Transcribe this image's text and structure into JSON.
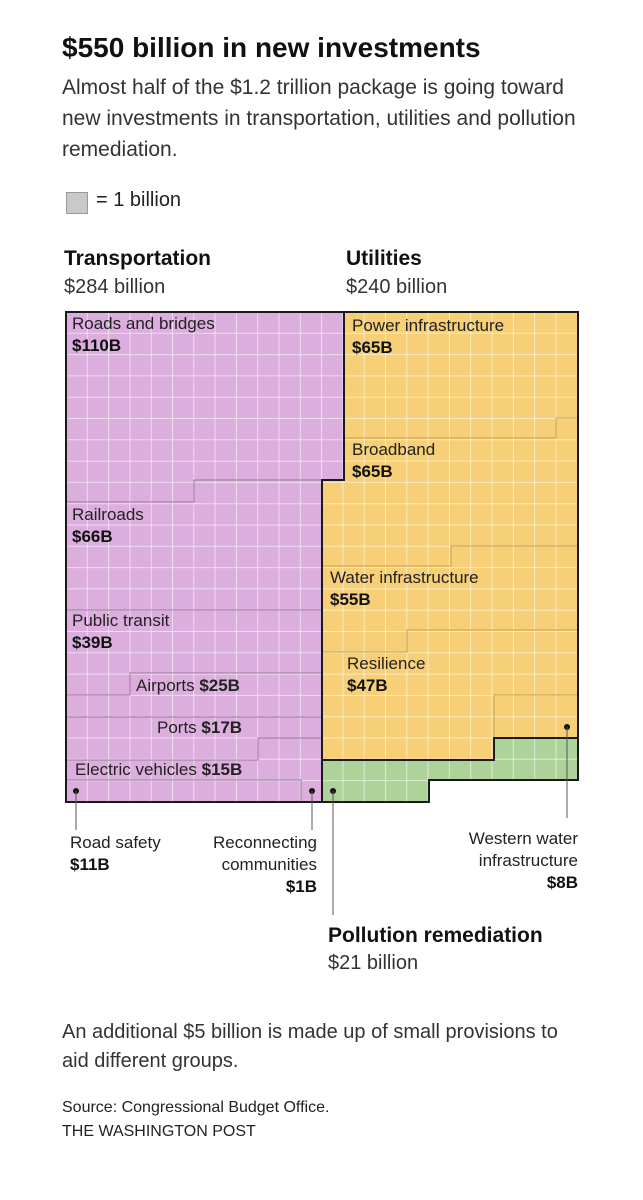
{
  "title": "$550 billion in new investments",
  "subtitle": "Almost half of the $1.2 trillion package is going toward new investments in transportation, utilities and pollution remediation.",
  "legend": {
    "text": "= 1 billion"
  },
  "chart_data": {
    "type": "unit-grid treemap",
    "title": "$550 billion in new investments",
    "unit": "1 billion per square",
    "colors": {
      "transportation": "#dcaede",
      "utilities": "#f6cf76",
      "pollution": "#aed39a",
      "grid": "#ffffff",
      "border": "#1a1a1a"
    },
    "categories": [
      {
        "name": "Transportation",
        "total": 284,
        "total_label": "$284 billion",
        "items": [
          {
            "name": "Roads and bridges",
            "value": 110,
            "value_label": "$110B"
          },
          {
            "name": "Railroads",
            "value": 66,
            "value_label": "$66B"
          },
          {
            "name": "Public transit",
            "value": 39,
            "value_label": "$39B"
          },
          {
            "name": "Airports",
            "value": 25,
            "value_label": "$25B"
          },
          {
            "name": "Ports",
            "value": 17,
            "value_label": "$17B"
          },
          {
            "name": "Electric vehicles",
            "value": 15,
            "value_label": "$15B"
          },
          {
            "name": "Road safety",
            "value": 11,
            "value_label": "$11B"
          },
          {
            "name": "Reconnecting communities",
            "value": 1,
            "value_label": "$1B"
          }
        ]
      },
      {
        "name": "Utilities",
        "total": 240,
        "total_label": "$240 billion",
        "items": [
          {
            "name": "Power infrastructure",
            "value": 65,
            "value_label": "$65B"
          },
          {
            "name": "Broadband",
            "value": 65,
            "value_label": "$65B"
          },
          {
            "name": "Water infrastructure",
            "value": 55,
            "value_label": "$55B"
          },
          {
            "name": "Resilience",
            "value": 47,
            "value_label": "$47B"
          },
          {
            "name": "Western water infrastructure",
            "value": 8,
            "value_label": "$8B"
          }
        ]
      },
      {
        "name": "Pollution remediation",
        "total": 21,
        "total_label": "$21 billion",
        "items": []
      }
    ]
  },
  "callouts": {
    "road_safety_name": "Road safety",
    "reconnecting_line1": "Reconnecting",
    "reconnecting_line2": "communities",
    "western_line1": "Western water",
    "western_line2": "infrastructure"
  },
  "footer_note": "An additional $5 billion is made up of small provisions to aid different groups.",
  "source": "Source: Congressional Budget Office.",
  "brand": "THE WASHINGTON POST"
}
